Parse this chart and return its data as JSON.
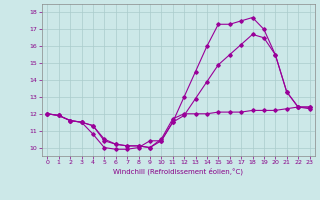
{
  "xlabel": "Windchill (Refroidissement éolien,°C)",
  "ylabel": "",
  "background_color": "#cce8e8",
  "grid_color": "#aacccc",
  "line_color": "#990099",
  "xlim": [
    -0.5,
    23.5
  ],
  "ylim": [
    9.5,
    18.5
  ],
  "xticks": [
    0,
    1,
    2,
    3,
    4,
    5,
    6,
    7,
    8,
    9,
    10,
    11,
    12,
    13,
    14,
    15,
    16,
    17,
    18,
    19,
    20,
    21,
    22,
    23
  ],
  "yticks": [
    10,
    11,
    12,
    13,
    14,
    15,
    16,
    17,
    18
  ],
  "line1_x": [
    0,
    1,
    2,
    3,
    4,
    5,
    6,
    7,
    8,
    9,
    10,
    11,
    12,
    13,
    14,
    15,
    16,
    17,
    18,
    19,
    20,
    21,
    22,
    23
  ],
  "line1_y": [
    12.0,
    11.9,
    11.6,
    11.5,
    10.8,
    10.0,
    9.9,
    9.9,
    10.0,
    10.4,
    10.4,
    11.5,
    13.0,
    14.5,
    16.0,
    17.3,
    17.3,
    17.5,
    17.7,
    17.0,
    15.5,
    13.3,
    12.4,
    12.4
  ],
  "line2_x": [
    0,
    1,
    2,
    3,
    4,
    5,
    6,
    7,
    8,
    9,
    10,
    11,
    12,
    13,
    14,
    15,
    16,
    17,
    18,
    19,
    20,
    21,
    22,
    23
  ],
  "line2_y": [
    12.0,
    11.9,
    11.6,
    11.5,
    11.3,
    10.4,
    10.2,
    10.1,
    10.1,
    10.0,
    10.4,
    11.5,
    11.9,
    12.9,
    13.9,
    14.9,
    15.5,
    16.1,
    16.7,
    16.5,
    15.5,
    13.3,
    12.4,
    12.3
  ],
  "line3_x": [
    0,
    1,
    2,
    3,
    4,
    5,
    6,
    7,
    8,
    9,
    10,
    11,
    12,
    13,
    14,
    15,
    16,
    17,
    18,
    19,
    20,
    21,
    22,
    23
  ],
  "line3_y": [
    12.0,
    11.9,
    11.6,
    11.5,
    11.3,
    10.5,
    10.2,
    10.1,
    10.1,
    10.0,
    10.5,
    11.7,
    12.0,
    12.0,
    12.0,
    12.1,
    12.1,
    12.1,
    12.2,
    12.2,
    12.2,
    12.3,
    12.4,
    12.4
  ]
}
